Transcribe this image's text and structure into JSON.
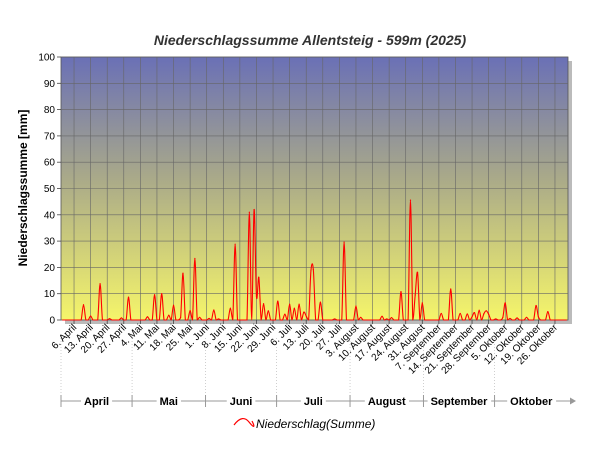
{
  "chart_data": {
    "type": "line",
    "title": "Niederschlagssumme Allentsteig - 599m (2025)",
    "ylabel": "Niederschlagssumme [mm]",
    "ylim": [
      0,
      100
    ],
    "yticks": [
      0,
      10,
      20,
      30,
      40,
      50,
      60,
      70,
      80,
      90,
      100
    ],
    "x_start": "2025-04-01",
    "x_end": "2025-10-31",
    "xtick_labels": [
      "6. April",
      "13. April",
      "20. April",
      "27. April",
      "4. Mai",
      "11. Mai",
      "18. Mai",
      "25. Mai",
      "1. Juni",
      "8. Juni",
      "15. Juni",
      "22. Juni",
      "29. Juni",
      "6. Juli",
      "13. Juli",
      "20. Juli",
      "27. Juli",
      "3. August",
      "10. August",
      "17. August",
      "24. August",
      "31. August",
      "7. September",
      "14. September",
      "21. September",
      "28. September",
      "5. Oktober",
      "12. Oktober",
      "19. Oktober",
      "26. Oktober"
    ],
    "months": [
      "April",
      "Mai",
      "Juni",
      "Juli",
      "August",
      "September",
      "Oktober"
    ],
    "legend": "top-bottom-center",
    "grid": true,
    "series": [
      {
        "name": "Niederschlag(Summe)",
        "color": "#ff0000",
        "points": [
          [
            "2025-04-10",
            5.8
          ],
          [
            "2025-04-13",
            1.5
          ],
          [
            "2025-04-17",
            13.8
          ],
          [
            "2025-04-21",
            0.5
          ],
          [
            "2025-04-26",
            0.8
          ],
          [
            "2025-04-29",
            8.7
          ],
          [
            "2025-05-07",
            1.2
          ],
          [
            "2025-05-10",
            9.6
          ],
          [
            "2025-05-13",
            10.0
          ],
          [
            "2025-05-16",
            1.8
          ],
          [
            "2025-05-18",
            5.6
          ],
          [
            "2025-05-21",
            1.0
          ],
          [
            "2025-05-22",
            17.8
          ],
          [
            "2025-05-25",
            3.6
          ],
          [
            "2025-05-27",
            23.4
          ],
          [
            "2025-05-29",
            1.0
          ],
          [
            "2025-06-02",
            0.6
          ],
          [
            "2025-06-04",
            3.8
          ],
          [
            "2025-06-06",
            0.4
          ],
          [
            "2025-06-11",
            4.5
          ],
          [
            "2025-06-13",
            28.8
          ],
          [
            "2025-06-19",
            41.0
          ],
          [
            "2025-06-21",
            42.0
          ],
          [
            "2025-06-22",
            9.0
          ],
          [
            "2025-06-23",
            16.2
          ],
          [
            "2025-06-25",
            6.2
          ],
          [
            "2025-06-27",
            3.5
          ],
          [
            "2025-07-01",
            7.2
          ],
          [
            "2025-07-04",
            2.2
          ],
          [
            "2025-07-06",
            6.0
          ],
          [
            "2025-07-08",
            4.5
          ],
          [
            "2025-07-10",
            6.0
          ],
          [
            "2025-07-12",
            3.0
          ],
          [
            "2025-07-13",
            1.5
          ],
          [
            "2025-07-15",
            18.8
          ],
          [
            "2025-07-16",
            19.2
          ],
          [
            "2025-07-19",
            6.8
          ],
          [
            "2025-07-25",
            0.4
          ],
          [
            "2025-07-29",
            29.6
          ],
          [
            "2025-08-03",
            5.3
          ],
          [
            "2025-08-05",
            1.0
          ],
          [
            "2025-08-14",
            1.4
          ],
          [
            "2025-08-16",
            0.4
          ],
          [
            "2025-08-18",
            0.9
          ],
          [
            "2025-08-22",
            10.8
          ],
          [
            "2025-08-26",
            45.6
          ],
          [
            "2025-08-28",
            9.5
          ],
          [
            "2025-08-29",
            18.0
          ],
          [
            "2025-08-31",
            6.5
          ],
          [
            "2025-09-08",
            2.5
          ],
          [
            "2025-09-12",
            11.8
          ],
          [
            "2025-09-16",
            2.5
          ],
          [
            "2025-09-19",
            2.3
          ],
          [
            "2025-09-21",
            1.2
          ],
          [
            "2025-09-22",
            2.8
          ],
          [
            "2025-09-24",
            3.7
          ],
          [
            "2025-09-26",
            2.4
          ],
          [
            "2025-09-27",
            3.5
          ],
          [
            "2025-09-28",
            2.2
          ],
          [
            "2025-10-01",
            0.4
          ],
          [
            "2025-10-04",
            1.0
          ],
          [
            "2025-10-05",
            6.5
          ],
          [
            "2025-10-07",
            0.6
          ],
          [
            "2025-10-10",
            0.8
          ],
          [
            "2025-10-14",
            1.0
          ],
          [
            "2025-10-18",
            5.5
          ],
          [
            "2025-10-19",
            1.2
          ],
          [
            "2025-10-23",
            3.2
          ]
        ]
      }
    ]
  }
}
